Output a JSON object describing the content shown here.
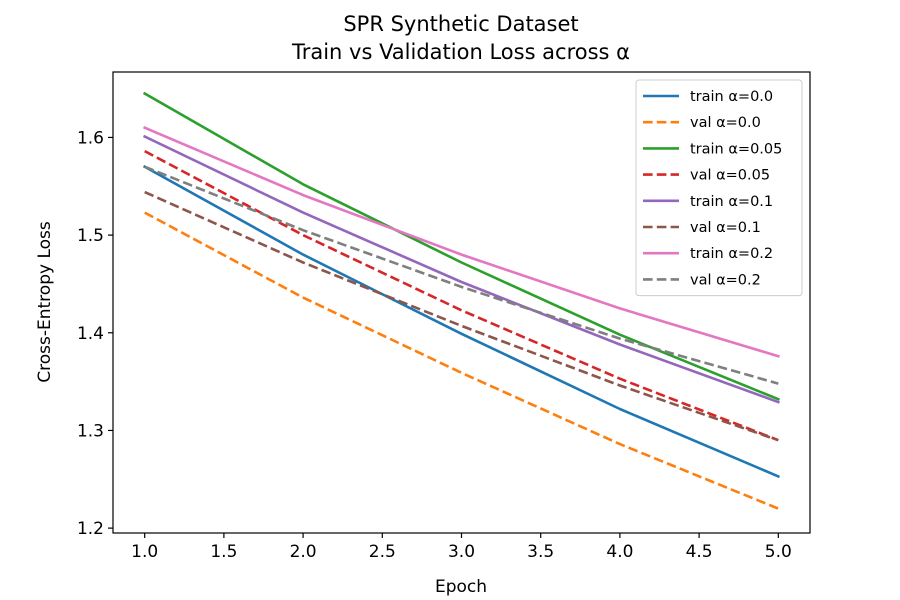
{
  "chart_data": {
    "type": "line",
    "title": "SPR Synthetic Dataset",
    "subtitle": "Train vs Validation Loss across α",
    "xlabel": "Epoch",
    "ylabel": "Cross-Entropy Loss",
    "xlim": [
      0.8,
      5.2
    ],
    "ylim": [
      1.195,
      1.667
    ],
    "x_ticks": [
      "1.0",
      "1.5",
      "2.0",
      "2.5",
      "3.0",
      "3.5",
      "4.0",
      "4.5",
      "5.0"
    ],
    "y_ticks": [
      "1.2",
      "1.3",
      "1.4",
      "1.5",
      "1.6"
    ],
    "grid": false,
    "legend_position": "top-right",
    "x": [
      1,
      2,
      3,
      4,
      5
    ],
    "series": [
      {
        "name": "train α=0.0",
        "values": [
          1.57,
          1.48,
          1.399,
          1.322,
          1.253
        ],
        "color": "#1f77b4",
        "style": "solid"
      },
      {
        "name": "val α=0.0",
        "values": [
          1.523,
          1.436,
          1.359,
          1.286,
          1.22
        ],
        "color": "#ff7f0e",
        "style": "dashed"
      },
      {
        "name": "train α=0.05",
        "values": [
          1.645,
          1.552,
          1.472,
          1.398,
          1.332
        ],
        "color": "#2ca02c",
        "style": "solid"
      },
      {
        "name": "val α=0.05",
        "values": [
          1.586,
          1.5,
          1.423,
          1.353,
          1.29
        ],
        "color": "#d62728",
        "style": "dashed"
      },
      {
        "name": "train α=0.1",
        "values": [
          1.601,
          1.523,
          1.452,
          1.388,
          1.329
        ],
        "color": "#9467bd",
        "style": "solid"
      },
      {
        "name": "val α=0.1",
        "values": [
          1.544,
          1.472,
          1.407,
          1.346,
          1.29
        ],
        "color": "#8c564b",
        "style": "dashed"
      },
      {
        "name": "train α=0.2",
        "values": [
          1.61,
          1.541,
          1.48,
          1.425,
          1.376
        ],
        "color": "#e377c2",
        "style": "solid"
      },
      {
        "name": "val α=0.2",
        "values": [
          1.57,
          1.505,
          1.447,
          1.394,
          1.348
        ],
        "color": "#7f7f7f",
        "style": "dashed"
      }
    ]
  }
}
